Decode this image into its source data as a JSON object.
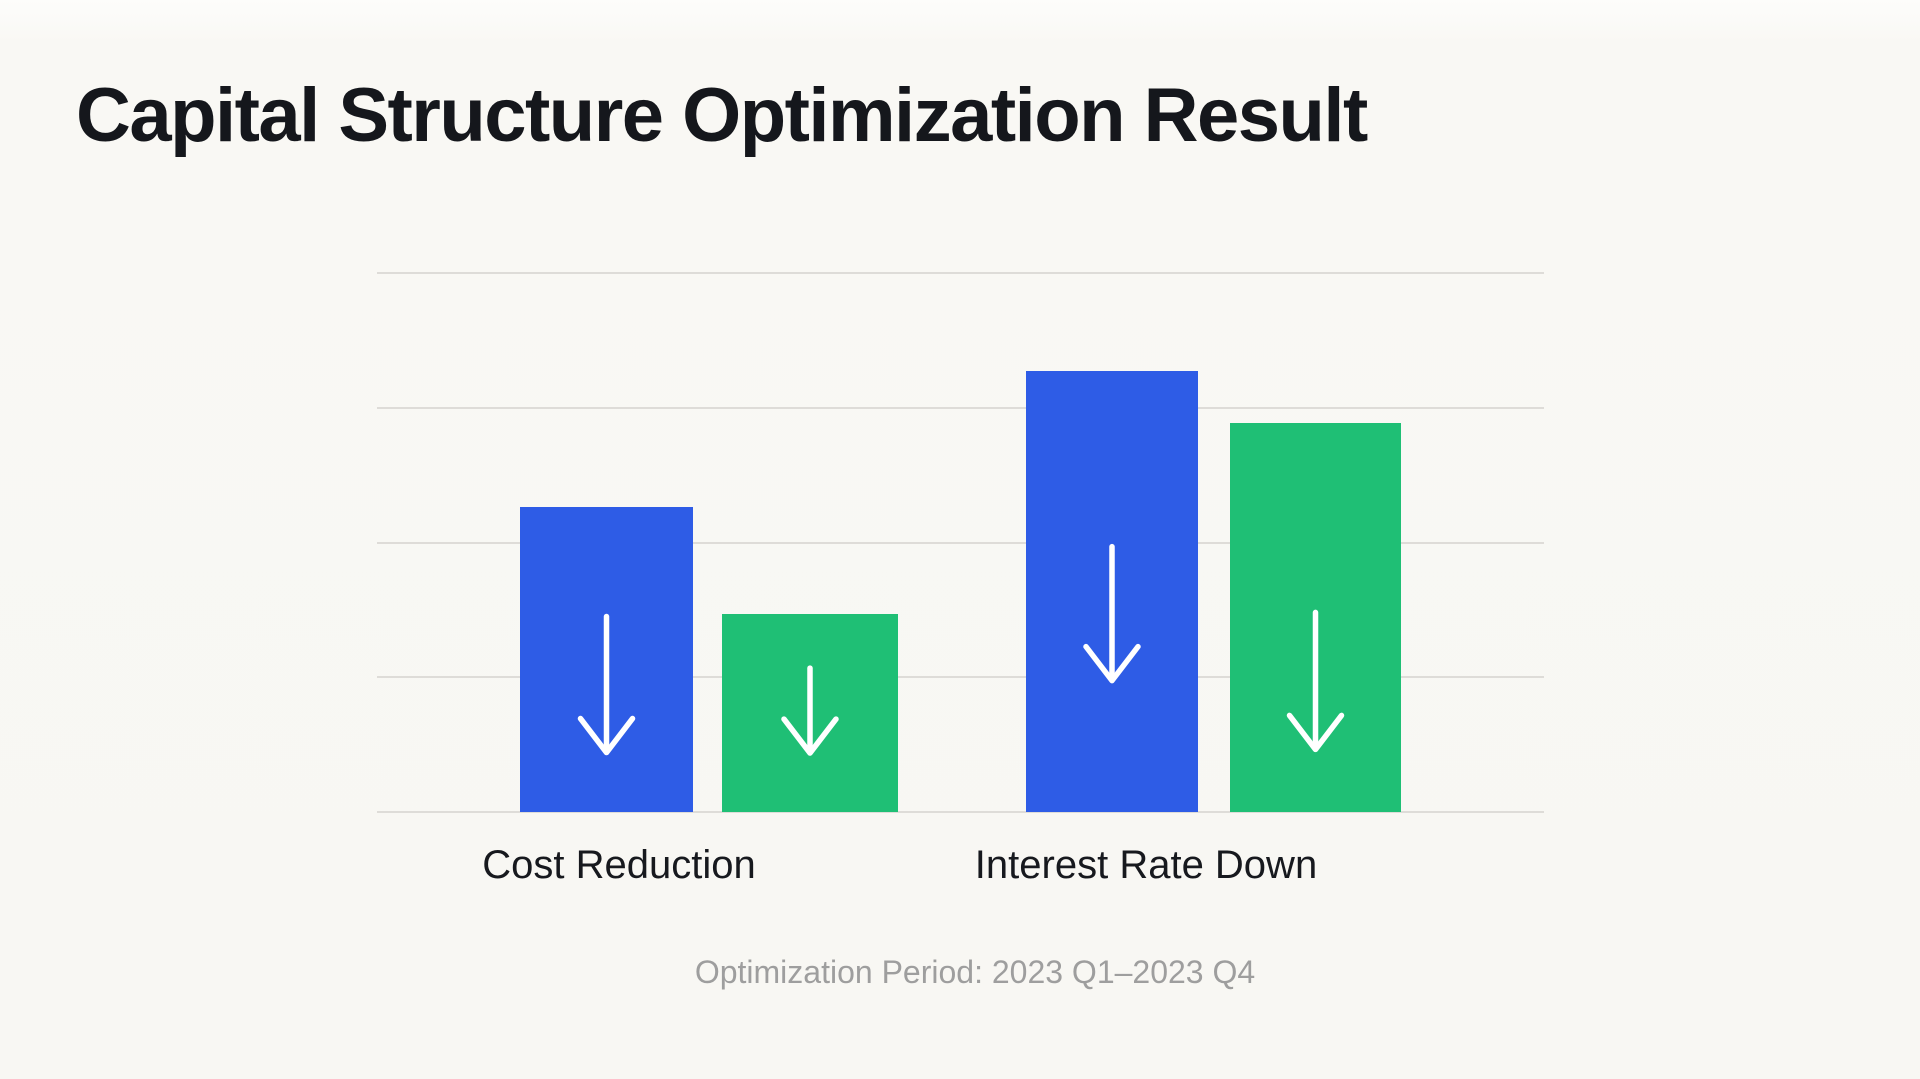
{
  "slide": {
    "title": "Capital Structure Optimization Result",
    "caption": "Optimization Period: 2023 Q1–2023 Q4"
  },
  "colors": {
    "background": "#f8f7f3",
    "title_text": "#15171c",
    "axis_label_text": "#17191e",
    "caption_text": "#9e9e9e",
    "gridline": "#dedcd8",
    "bar_blue": "#2e5ce6",
    "bar_green": "#1fbf75",
    "arrow": "#ffffff"
  },
  "chart_data": {
    "type": "bar",
    "title": "Capital Structure Optimization Result",
    "categories": [
      "Cost Reduction",
      "Interest Rate Down"
    ],
    "series": [
      {
        "name": "blue",
        "color": "#2e5ce6",
        "values": [
          2.26,
          3.27
        ]
      },
      {
        "name": "green",
        "color": "#1fbf75",
        "values": [
          1.47,
          2.89
        ]
      }
    ],
    "xlabel": "",
    "ylabel": "",
    "ylim": [
      0,
      4
    ],
    "y_tick_labels": [],
    "value_axis_labeled": false,
    "grid": "horizontal",
    "gridline_count": 5,
    "legend_position": "none",
    "annotations": [
      "white downward arrow glyph centered inside each bar"
    ],
    "caption": "Optimization Period: 2023 Q1–2023 Q4"
  }
}
